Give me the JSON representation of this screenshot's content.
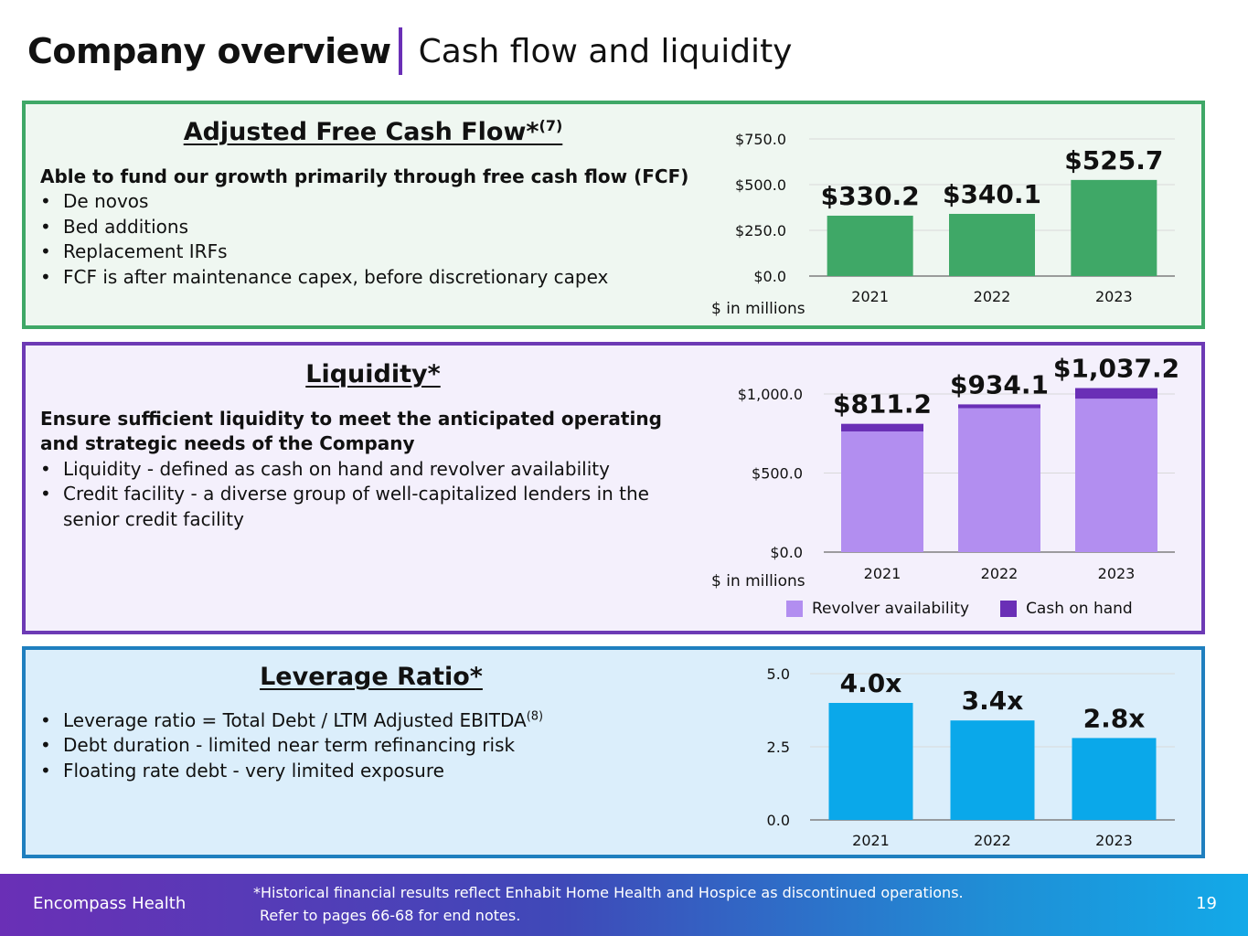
{
  "title": {
    "main": "Company overview",
    "sub": "Cash flow and liquidity"
  },
  "fcf": {
    "heading": "Adjusted Free Cash Flow*",
    "heading_sup": "(7)",
    "lead": "Able to fund our growth primarily through free cash flow (FCF)",
    "bullets": [
      "De novos",
      "Bed additions",
      "Replacement IRFs",
      "FCF is after maintenance capex, before discretionary capex"
    ],
    "unit": "$ in millions"
  },
  "liquidity": {
    "heading": "Liquidity*",
    "lead": "Ensure sufficient liquidity to meet the anticipated operating and strategic needs of the Company",
    "bullets": [
      "Liquidity - defined as cash on hand and revolver availability",
      "Credit facility - a diverse group of well-capitalized lenders in the senior credit facility"
    ],
    "unit": "$ in millions",
    "legend": [
      "Revolver availability",
      "Cash on hand"
    ]
  },
  "leverage": {
    "heading": "Leverage Ratio*",
    "bullet1_text": "Leverage ratio = Total Debt / LTM Adjusted EBITDA",
    "bullet1_sup": "(8)",
    "bullets_rest": [
      "Debt duration - limited near term refinancing risk",
      "Floating rate debt - very limited exposure"
    ]
  },
  "footer": {
    "brand": "Encompass Health",
    "note_line1": "*Historical financial results reflect Enhabit Home Health and Hospice as discontinued operations.",
    "note_line2": "Refer to pages 66-68 for end notes.",
    "page": "19"
  },
  "colors": {
    "fcf_bar": "#3fa867",
    "revolver": "#b28ef0",
    "cash": "#6a2fb6",
    "leverage_bar": "#0aa8ea",
    "axis": "#7f7f7f",
    "grid": "#d9d9d9"
  },
  "chart_data": [
    {
      "id": "fcf",
      "type": "bar",
      "title": "Adjusted Free Cash Flow",
      "categories": [
        "2021",
        "2022",
        "2023"
      ],
      "values": [
        330.2,
        340.1,
        525.7
      ],
      "data_labels": [
        "$330.2",
        "$340.1",
        "$525.7"
      ],
      "ylim": [
        0,
        750
      ],
      "yticks": [
        0,
        250,
        500,
        750
      ],
      "ytick_labels": [
        "$0.0",
        "$250.0",
        "$500.0",
        "$750.0"
      ],
      "ylabel": "$ in millions"
    },
    {
      "id": "liquidity",
      "type": "bar",
      "stacked": true,
      "title": "Liquidity",
      "categories": [
        "2021",
        "2022",
        "2023"
      ],
      "series": [
        {
          "name": "Revolver availability",
          "values": [
            763.0,
            910.0,
            970.0
          ]
        },
        {
          "name": "Cash on hand",
          "values": [
            48.2,
            24.1,
            67.2
          ]
        }
      ],
      "totals": [
        811.2,
        934.1,
        1037.2
      ],
      "data_labels": [
        "$811.2",
        "$934.1",
        "$1,037.2"
      ],
      "ylim": [
        0,
        1000
      ],
      "yticks": [
        0,
        500,
        1000
      ],
      "ytick_labels": [
        "$0.0",
        "$500.0",
        "$1,000.0"
      ],
      "ylabel": "$ in millions"
    },
    {
      "id": "leverage",
      "type": "bar",
      "title": "Leverage Ratio",
      "categories": [
        "2021",
        "2022",
        "2023"
      ],
      "values": [
        4.0,
        3.4,
        2.8
      ],
      "data_labels": [
        "4.0x",
        "3.4x",
        "2.8x"
      ],
      "ylim": [
        0,
        5
      ],
      "yticks": [
        0,
        2.5,
        5
      ],
      "ytick_labels": [
        "0.0",
        "2.5",
        "5.0"
      ]
    }
  ]
}
